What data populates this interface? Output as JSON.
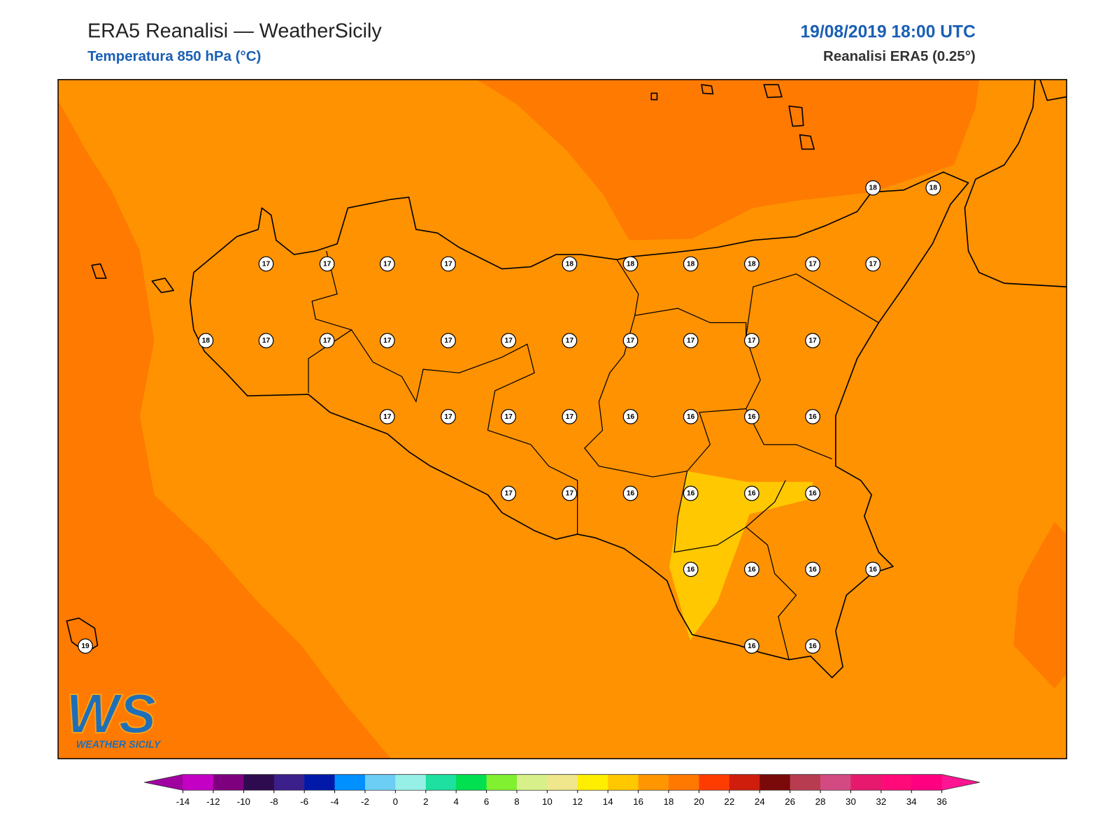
{
  "header": {
    "title": "ERA5 Reanalisi — WeatherSicily",
    "subtitle": "Temperatura 850 hPa (°C)",
    "datetime": "19/08/2019 18:00 UTC",
    "source": "Reanalisi ERA5 (0.25°)"
  },
  "map": {
    "station_values": [
      18,
      18,
      17,
      17,
      17,
      17,
      18,
      18,
      18,
      18,
      17,
      17,
      18,
      17,
      17,
      17,
      17,
      17,
      17,
      17,
      17,
      17,
      17,
      17,
      17,
      17,
      17,
      16,
      16,
      16,
      16,
      17,
      17,
      16,
      16,
      16,
      16,
      16,
      16,
      16,
      16,
      16,
      16,
      19
    ]
  },
  "colorbar": {
    "ticks": [
      -14,
      -12,
      -10,
      -8,
      -6,
      -4,
      -2,
      0,
      2,
      4,
      6,
      8,
      10,
      12,
      14,
      16,
      18,
      20,
      22,
      24,
      26,
      28,
      30,
      32,
      34,
      36
    ],
    "colors": [
      "#c400c4",
      "#7f007f",
      "#2e0a4f",
      "#3b1f8a",
      "#0019a8",
      "#0090ff",
      "#6ccdf5",
      "#96f0e8",
      "#1ee0a0",
      "#00e050",
      "#80f030",
      "#d8f08a",
      "#f0e68c",
      "#ffee00",
      "#ffc800",
      "#ff9600",
      "#ff7800",
      "#ff3c00",
      "#d01e0c",
      "#7a0a0a",
      "#b83c50",
      "#d34a82",
      "#e6196e",
      "#ff0a78",
      "#ff0080"
    ],
    "under_color": "#a000a0",
    "over_color": "#ff1493"
  },
  "logo": {
    "mark": "WS",
    "text": "WEATHER SICILY"
  }
}
